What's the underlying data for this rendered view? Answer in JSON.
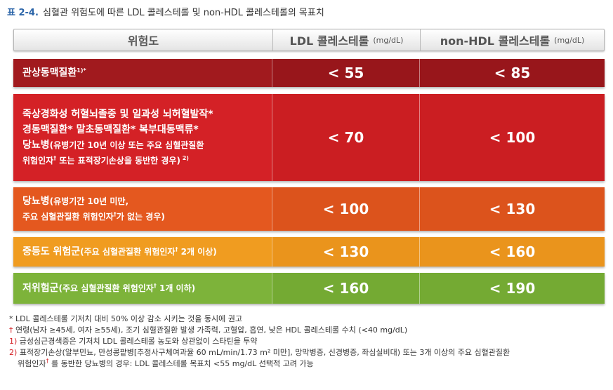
{
  "caption": {
    "tag": "표 2-4.",
    "text": " 심혈관 위험도에 따른 LDL 콜레스테롤 및 non-HDL 콜레스테롤의 목표치"
  },
  "header": {
    "col1": "위험도",
    "col2": "LDL 콜레스테롤",
    "col2_unit": "(mg/dL)",
    "col3": "non-HDL 콜레스테롤",
    "col3_unit": "(mg/dL)"
  },
  "rows": [
    {
      "lines": [
        {
          "a": "관상동맥질환",
          "sup": "1)*",
          "b": ""
        }
      ],
      "ldl": "< 55",
      "nonhdl": "< 85"
    },
    {
      "lines": [
        {
          "a": "죽상경화성 허혈뇌졸중 및 일과성 뇌허혈발작*",
          "b": ""
        },
        {
          "a": "경동맥질환*  말초동맥질환*  복부대동맥류*",
          "b": ""
        },
        {
          "a": "당뇨병",
          "b": "(유병기간 10년 이상 또는 주요 심혈관질환"
        },
        {
          "a": "",
          "b": "위험인자",
          "sup": "†",
          "c": " 또는 표적장기손상을 동반한 경우)",
          "sup2": " 2)"
        }
      ],
      "ldl": "< 70",
      "nonhdl": "< 100"
    },
    {
      "lines": [
        {
          "a": "당뇨병",
          "b": "(유병기간 10년 미만,"
        },
        {
          "a": "",
          "b": "주요 심혈관질환 위험인자",
          "sup": "†",
          "c": "가 없는 경우)"
        }
      ],
      "ldl": "< 100",
      "nonhdl": "< 130"
    },
    {
      "lines": [
        {
          "a": "중등도 위험군",
          "b": "(주요 심혈관질환 위험인자",
          "sup": "†",
          "c": " 2개 이상)"
        }
      ],
      "ldl": "< 130",
      "nonhdl": "< 160"
    },
    {
      "lines": [
        {
          "a": "저위험군",
          "b": "(주요 심혈관질환 위험인자",
          "sup": "†",
          "c": " 1개 이하)"
        }
      ],
      "ldl": "< 160",
      "nonhdl": "< 190"
    }
  ],
  "notes": {
    "n1": "* LDL 콜레스테롤 기저치 대비 50% 이상 감소 시키는 것을 동시에 권고",
    "n2_mark": "†",
    "n2": " 연령(남자 ≥45세, 여자 ≥55세), 조기 심혈관질환 발생 가족력, 고혈압, 흡연, 낮은 HDL 콜레스테롤 수치 (<40 mg/dL)",
    "n3_mark": "1)",
    "n3": " 급성심근경색증은 기저치 LDL 콜레스테롤 농도와 상관없이 스타틴을 투약",
    "n4_mark": "2)",
    "n4": " 표적장기손상(알부민뇨, 만성콩팥병[추정사구체여과율 60 mL/min/1.73 m² 미만], 망막병증, 신경병증, 좌심실비대) 또는 3개 이상의 주요 심혈관질환",
    "n5": "위험인자",
    "n5_mark": "†",
    "n5b": "를 동반한 당뇨병의 경우: LDL 콜레스테롤 목표치 <55 mg/dL 선택적 고려 가능"
  }
}
